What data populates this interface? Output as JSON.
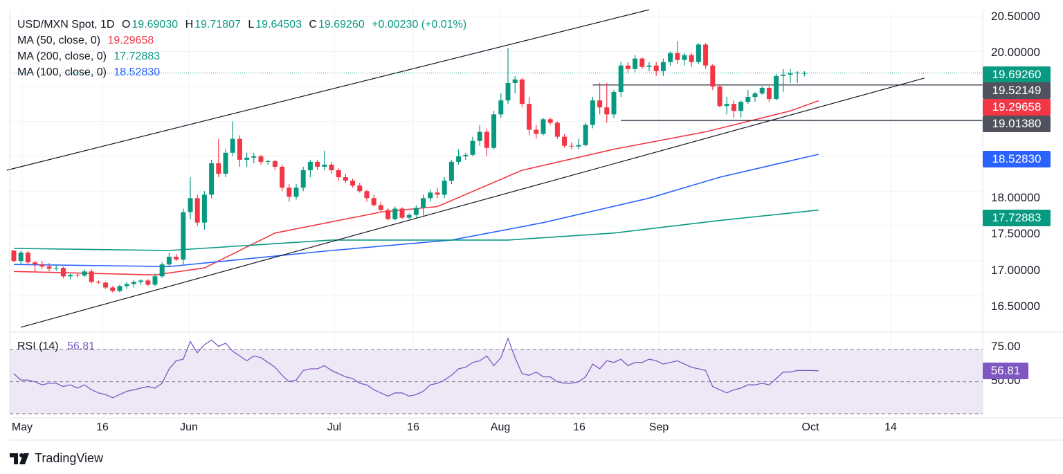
{
  "header": {
    "symbol": "USD/MXN Spot, 1D",
    "open_label": "O",
    "open": "19.69030",
    "high_label": "H",
    "high": "19.71807",
    "low_label": "L",
    "low": "19.64503",
    "close_label": "C",
    "close": "19.69260",
    "change": "+0.00230 (+0.01%)"
  },
  "ma_legend": [
    {
      "label": "MA (50, close, 0)",
      "value": "19.29658",
      "color": "#f23645"
    },
    {
      "label": "MA (200, close, 0)",
      "value": "17.72883",
      "color": "#089981"
    },
    {
      "label": "MA (100, close, 0)",
      "value": "18.52830",
      "color": "#2962ff"
    }
  ],
  "rsi_legend": {
    "label": "RSI (14)",
    "value": "56.81",
    "color": "#7e57c2"
  },
  "price_tags": [
    {
      "text": "19.69260",
      "value": 19.6926,
      "color": "#089981"
    },
    {
      "text": "19.52149",
      "value": 19.52149,
      "color": "#50535e"
    },
    {
      "text": "19.29658",
      "value": 19.29658,
      "color": "#f23645"
    },
    {
      "text": "19.01380",
      "value": 19.0138,
      "color": "#50535e"
    },
    {
      "text": "18.52830",
      "value": 18.5283,
      "color": "#2962ff"
    },
    {
      "text": "17.72883",
      "value": 17.72883,
      "color": "#089981"
    }
  ],
  "rsi_tag": {
    "text": "56.81",
    "value": 56.81,
    "color": "#7e57c2"
  },
  "price_axis_labels": [
    "20.50000",
    "20.00000",
    "18.00000",
    "17.50000",
    "17.00000",
    "16.50000"
  ],
  "rsi_axis_labels": [
    "75.00",
    "50.00"
  ],
  "date_labels": [
    "May",
    "16",
    "Jun",
    "Jul",
    "16",
    "Aug",
    "16",
    "Sep",
    "Oct",
    "14"
  ],
  "brand": "TradingView",
  "colors": {
    "up": "#089981",
    "down": "#f23645",
    "grid": "#f0f3fa",
    "trend": "#131722",
    "rsi_band": "#ede7f6"
  },
  "chart_data": {
    "type": "candlestick",
    "title": "USD/MXN Spot, 1D",
    "price_range": [
      16.0,
      20.6
    ],
    "candles": [
      {
        "o": 17.15,
        "h": 17.15,
        "l": 16.98,
        "c": 17.0
      },
      {
        "o": 17.0,
        "h": 17.15,
        "l": 16.95,
        "c": 17.12
      },
      {
        "o": 17.12,
        "h": 17.14,
        "l": 16.95,
        "c": 16.98
      },
      {
        "o": 16.98,
        "h": 17.0,
        "l": 16.85,
        "c": 16.95
      },
      {
        "o": 16.95,
        "h": 17.0,
        "l": 16.88,
        "c": 16.92
      },
      {
        "o": 16.92,
        "h": 16.97,
        "l": 16.85,
        "c": 16.89
      },
      {
        "o": 16.89,
        "h": 16.95,
        "l": 16.86,
        "c": 16.9
      },
      {
        "o": 16.9,
        "h": 16.92,
        "l": 16.75,
        "c": 16.78
      },
      {
        "o": 16.78,
        "h": 16.82,
        "l": 16.74,
        "c": 16.8
      },
      {
        "o": 16.8,
        "h": 16.83,
        "l": 16.76,
        "c": 16.79
      },
      {
        "o": 16.79,
        "h": 16.88,
        "l": 16.77,
        "c": 16.85
      },
      {
        "o": 16.85,
        "h": 16.88,
        "l": 16.68,
        "c": 16.7
      },
      {
        "o": 16.7,
        "h": 16.72,
        "l": 16.67,
        "c": 16.69
      },
      {
        "o": 16.69,
        "h": 16.7,
        "l": 16.6,
        "c": 16.62
      },
      {
        "o": 16.62,
        "h": 16.64,
        "l": 16.55,
        "c": 16.57
      },
      {
        "o": 16.57,
        "h": 16.66,
        "l": 16.55,
        "c": 16.64
      },
      {
        "o": 16.64,
        "h": 16.7,
        "l": 16.6,
        "c": 16.67
      },
      {
        "o": 16.67,
        "h": 16.73,
        "l": 16.62,
        "c": 16.7
      },
      {
        "o": 16.7,
        "h": 16.74,
        "l": 16.66,
        "c": 16.72
      },
      {
        "o": 16.72,
        "h": 16.74,
        "l": 16.64,
        "c": 16.66
      },
      {
        "o": 16.66,
        "h": 16.82,
        "l": 16.64,
        "c": 16.78
      },
      {
        "o": 16.78,
        "h": 16.98,
        "l": 16.76,
        "c": 16.95
      },
      {
        "o": 16.95,
        "h": 17.12,
        "l": 16.92,
        "c": 17.06
      },
      {
        "o": 17.06,
        "h": 17.1,
        "l": 17.0,
        "c": 17.02
      },
      {
        "o": 17.02,
        "h": 17.75,
        "l": 16.95,
        "c": 17.7
      },
      {
        "o": 17.7,
        "h": 18.2,
        "l": 17.6,
        "c": 17.9
      },
      {
        "o": 17.9,
        "h": 17.95,
        "l": 17.5,
        "c": 17.55
      },
      {
        "o": 17.55,
        "h": 18.0,
        "l": 17.45,
        "c": 17.95
      },
      {
        "o": 17.95,
        "h": 18.45,
        "l": 17.9,
        "c": 18.4
      },
      {
        "o": 18.4,
        "h": 18.75,
        "l": 18.2,
        "c": 18.25
      },
      {
        "o": 18.25,
        "h": 18.6,
        "l": 18.2,
        "c": 18.55
      },
      {
        "o": 18.55,
        "h": 19.0,
        "l": 18.5,
        "c": 18.75
      },
      {
        "o": 18.75,
        "h": 18.8,
        "l": 18.35,
        "c": 18.45
      },
      {
        "o": 18.45,
        "h": 18.55,
        "l": 18.35,
        "c": 18.48
      },
      {
        "o": 18.48,
        "h": 18.55,
        "l": 18.4,
        "c": 18.5
      },
      {
        "o": 18.5,
        "h": 18.52,
        "l": 18.38,
        "c": 18.42
      },
      {
        "o": 18.42,
        "h": 18.45,
        "l": 18.38,
        "c": 18.43
      },
      {
        "o": 18.43,
        "h": 18.45,
        "l": 18.3,
        "c": 18.35
      },
      {
        "o": 18.35,
        "h": 18.38,
        "l": 18.0,
        "c": 18.05
      },
      {
        "o": 18.05,
        "h": 18.1,
        "l": 17.85,
        "c": 17.92
      },
      {
        "o": 17.92,
        "h": 18.1,
        "l": 17.88,
        "c": 18.05
      },
      {
        "o": 18.05,
        "h": 18.35,
        "l": 18.0,
        "c": 18.3
      },
      {
        "o": 18.3,
        "h": 18.45,
        "l": 18.2,
        "c": 18.42
      },
      {
        "o": 18.42,
        "h": 18.45,
        "l": 18.3,
        "c": 18.35
      },
      {
        "o": 18.35,
        "h": 18.58,
        "l": 18.3,
        "c": 18.38
      },
      {
        "o": 18.38,
        "h": 18.42,
        "l": 18.25,
        "c": 18.3
      },
      {
        "o": 18.3,
        "h": 18.33,
        "l": 18.15,
        "c": 18.2
      },
      {
        "o": 18.2,
        "h": 18.25,
        "l": 18.12,
        "c": 18.15
      },
      {
        "o": 18.15,
        "h": 18.18,
        "l": 18.05,
        "c": 18.08
      },
      {
        "o": 18.08,
        "h": 18.12,
        "l": 17.98,
        "c": 18.0
      },
      {
        "o": 18.0,
        "h": 18.02,
        "l": 17.85,
        "c": 17.9
      },
      {
        "o": 17.9,
        "h": 17.95,
        "l": 17.78,
        "c": 17.8
      },
      {
        "o": 17.8,
        "h": 17.85,
        "l": 17.7,
        "c": 17.73
      },
      {
        "o": 17.73,
        "h": 17.76,
        "l": 17.58,
        "c": 17.6
      },
      {
        "o": 17.6,
        "h": 17.78,
        "l": 17.58,
        "c": 17.75
      },
      {
        "o": 17.75,
        "h": 17.77,
        "l": 17.6,
        "c": 17.62
      },
      {
        "o": 17.62,
        "h": 17.68,
        "l": 17.6,
        "c": 17.66
      },
      {
        "o": 17.66,
        "h": 17.8,
        "l": 17.62,
        "c": 17.76
      },
      {
        "o": 17.76,
        "h": 17.95,
        "l": 17.65,
        "c": 17.9
      },
      {
        "o": 17.9,
        "h": 18.02,
        "l": 17.85,
        "c": 17.98
      },
      {
        "o": 17.98,
        "h": 18.05,
        "l": 17.9,
        "c": 17.95
      },
      {
        "o": 17.95,
        "h": 18.2,
        "l": 17.9,
        "c": 18.15
      },
      {
        "o": 18.15,
        "h": 18.45,
        "l": 18.1,
        "c": 18.42
      },
      {
        "o": 18.42,
        "h": 18.6,
        "l": 18.38,
        "c": 18.5
      },
      {
        "o": 18.5,
        "h": 18.55,
        "l": 18.45,
        "c": 18.52
      },
      {
        "o": 18.52,
        "h": 18.78,
        "l": 18.5,
        "c": 18.72
      },
      {
        "o": 18.72,
        "h": 18.95,
        "l": 18.65,
        "c": 18.85
      },
      {
        "o": 18.85,
        "h": 18.9,
        "l": 18.5,
        "c": 18.62
      },
      {
        "o": 18.62,
        "h": 19.15,
        "l": 18.6,
        "c": 19.1
      },
      {
        "o": 19.1,
        "h": 19.4,
        "l": 19.05,
        "c": 19.3
      },
      {
        "o": 19.3,
        "h": 20.05,
        "l": 19.25,
        "c": 19.55
      },
      {
        "o": 19.55,
        "h": 19.65,
        "l": 19.4,
        "c": 19.6
      },
      {
        "o": 19.6,
        "h": 19.62,
        "l": 19.2,
        "c": 19.25
      },
      {
        "o": 19.25,
        "h": 19.35,
        "l": 18.8,
        "c": 18.88
      },
      {
        "o": 18.88,
        "h": 18.95,
        "l": 18.75,
        "c": 18.82
      },
      {
        "o": 18.82,
        "h": 19.05,
        "l": 18.8,
        "c": 19.03
      },
      {
        "o": 19.03,
        "h": 19.05,
        "l": 18.95,
        "c": 18.98
      },
      {
        "o": 18.98,
        "h": 19.0,
        "l": 18.75,
        "c": 18.78
      },
      {
        "o": 18.78,
        "h": 18.82,
        "l": 18.62,
        "c": 18.65
      },
      {
        "o": 18.65,
        "h": 18.7,
        "l": 18.6,
        "c": 18.64
      },
      {
        "o": 18.64,
        "h": 18.75,
        "l": 18.6,
        "c": 18.66
      },
      {
        "o": 18.66,
        "h": 18.98,
        "l": 18.64,
        "c": 18.95
      },
      {
        "o": 18.95,
        "h": 19.35,
        "l": 18.9,
        "c": 19.3
      },
      {
        "o": 19.3,
        "h": 19.55,
        "l": 19.1,
        "c": 19.2
      },
      {
        "o": 19.2,
        "h": 19.55,
        "l": 18.98,
        "c": 19.1
      },
      {
        "o": 19.1,
        "h": 19.45,
        "l": 19.05,
        "c": 19.42
      },
      {
        "o": 19.42,
        "h": 19.85,
        "l": 19.35,
        "c": 19.8
      },
      {
        "o": 19.8,
        "h": 19.85,
        "l": 19.7,
        "c": 19.75
      },
      {
        "o": 19.75,
        "h": 19.95,
        "l": 19.7,
        "c": 19.9
      },
      {
        "o": 19.9,
        "h": 19.92,
        "l": 19.75,
        "c": 19.78
      },
      {
        "o": 19.78,
        "h": 19.85,
        "l": 19.72,
        "c": 19.8
      },
      {
        "o": 19.8,
        "h": 19.85,
        "l": 19.65,
        "c": 19.72
      },
      {
        "o": 19.72,
        "h": 19.9,
        "l": 19.65,
        "c": 19.85
      },
      {
        "o": 19.85,
        "h": 20.0,
        "l": 19.8,
        "c": 19.98
      },
      {
        "o": 19.98,
        "h": 20.15,
        "l": 19.82,
        "c": 19.88
      },
      {
        "o": 19.88,
        "h": 19.98,
        "l": 19.8,
        "c": 19.95
      },
      {
        "o": 19.95,
        "h": 19.98,
        "l": 19.78,
        "c": 19.85
      },
      {
        "o": 19.85,
        "h": 20.12,
        "l": 19.82,
        "c": 20.1
      },
      {
        "o": 20.1,
        "h": 20.12,
        "l": 19.75,
        "c": 19.8
      },
      {
        "o": 19.8,
        "h": 19.82,
        "l": 19.45,
        "c": 19.5
      },
      {
        "o": 19.5,
        "h": 19.52,
        "l": 19.2,
        "c": 19.22
      },
      {
        "o": 19.22,
        "h": 19.35,
        "l": 19.1,
        "c": 19.25
      },
      {
        "o": 19.25,
        "h": 19.3,
        "l": 19.05,
        "c": 19.15
      },
      {
        "o": 19.15,
        "h": 19.3,
        "l": 19.05,
        "c": 19.28
      },
      {
        "o": 19.28,
        "h": 19.45,
        "l": 19.25,
        "c": 19.35
      },
      {
        "o": 19.35,
        "h": 19.42,
        "l": 19.28,
        "c": 19.4
      },
      {
        "o": 19.4,
        "h": 19.5,
        "l": 19.38,
        "c": 19.48
      },
      {
        "o": 19.48,
        "h": 19.5,
        "l": 19.28,
        "c": 19.32
      },
      {
        "o": 19.32,
        "h": 19.68,
        "l": 19.3,
        "c": 19.65
      },
      {
        "o": 19.65,
        "h": 19.75,
        "l": 19.42,
        "c": 19.67
      },
      {
        "o": 19.67,
        "h": 19.75,
        "l": 19.55,
        "c": 19.69
      },
      {
        "o": 19.69,
        "h": 19.72,
        "l": 19.55,
        "c": 19.7
      },
      {
        "o": 19.6903,
        "h": 19.71807,
        "l": 19.64503,
        "c": 19.6926
      }
    ],
    "moving_averages": [
      {
        "name": "MA 50",
        "color": "#f23645",
        "points": [
          [
            0,
            16.85
          ],
          [
            20,
            16.8
          ],
          [
            27,
            16.9
          ],
          [
            37,
            17.4
          ],
          [
            52,
            17.7
          ],
          [
            60,
            17.78
          ],
          [
            72,
            18.3
          ],
          [
            85,
            18.6
          ],
          [
            98,
            18.85
          ],
          [
            110,
            19.15
          ],
          [
            114,
            19.29658
          ]
        ]
      },
      {
        "name": "MA 100",
        "color": "#2962ff",
        "points": [
          [
            0,
            16.95
          ],
          [
            22,
            16.92
          ],
          [
            45,
            17.15
          ],
          [
            62,
            17.3
          ],
          [
            75,
            17.55
          ],
          [
            90,
            17.9
          ],
          [
            100,
            18.2
          ],
          [
            114,
            18.5283
          ]
        ]
      },
      {
        "name": "MA 200",
        "color": "#089981",
        "points": [
          [
            0,
            17.18
          ],
          [
            22,
            17.15
          ],
          [
            45,
            17.3
          ],
          [
            70,
            17.3
          ],
          [
            85,
            17.4
          ],
          [
            100,
            17.58
          ],
          [
            114,
            17.72883
          ]
        ]
      }
    ],
    "trendlines": [
      {
        "name": "upper-channel",
        "points": [
          [
            -1,
            18.3
          ],
          [
            90,
            20.6
          ]
        ]
      },
      {
        "name": "lower-trend",
        "points": [
          [
            1,
            16.05
          ],
          [
            129,
            19.62
          ]
        ]
      },
      {
        "name": "resistance-19.52",
        "points": [
          [
            82,
            19.52149
          ],
          [
            139,
            19.52149
          ]
        ]
      },
      {
        "name": "support-19.01",
        "points": [
          [
            86,
            19.0138
          ],
          [
            139,
            19.0138
          ]
        ]
      }
    ],
    "rsi": {
      "name": "RSI (14)",
      "range": [
        30,
        80
      ],
      "levels": [
        70,
        50,
        30
      ],
      "values": [
        55,
        51,
        51,
        50,
        48,
        49,
        49,
        47,
        48,
        46,
        48,
        45,
        43,
        42,
        40,
        42,
        44,
        45,
        46,
        47,
        46,
        49,
        58,
        63,
        64,
        75,
        68,
        73,
        76,
        72,
        74,
        69,
        66,
        63,
        66,
        65,
        62,
        59,
        54,
        50,
        51,
        57,
        58,
        58,
        60,
        57,
        55,
        53,
        52,
        49,
        48,
        45,
        43,
        41,
        43,
        43,
        41,
        42,
        44,
        48,
        49,
        51,
        54,
        58,
        59,
        62,
        63,
        66,
        60,
        65,
        77,
        65,
        55,
        54,
        56,
        53,
        53,
        50,
        49,
        49,
        50,
        53,
        61,
        58,
        63,
        62,
        64,
        60,
        62,
        62,
        64,
        63,
        61,
        62,
        63,
        61,
        59,
        58,
        57,
        47,
        45,
        43,
        45,
        46,
        48,
        48,
        49,
        48,
        52,
        56,
        56,
        57,
        57,
        57,
        56.81
      ]
    },
    "price_axis_ticks": [
      16.5,
      17.0,
      17.5,
      18.0,
      20.0,
      20.5
    ],
    "rsi_axis_ticks": [
      75,
      50
    ],
    "x_labels": [
      "May",
      "16",
      "Jun",
      "Jul",
      "16",
      "Aug",
      "16",
      "Sep",
      "Oct",
      "14"
    ]
  }
}
